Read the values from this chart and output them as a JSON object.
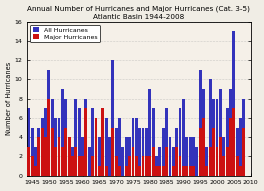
{
  "title": "Annual Number of Hurricanes and Major Hurricanes (Cat. 3-5)",
  "subtitle": "Atlantic Basin 1944-2008",
  "ylabel": "Number of Hurricanes",
  "years": [
    1944,
    1945,
    1946,
    1947,
    1948,
    1949,
    1950,
    1951,
    1952,
    1953,
    1954,
    1955,
    1956,
    1957,
    1958,
    1959,
    1960,
    1961,
    1962,
    1963,
    1964,
    1965,
    1966,
    1967,
    1968,
    1969,
    1970,
    1971,
    1972,
    1973,
    1974,
    1975,
    1976,
    1977,
    1978,
    1979,
    1980,
    1981,
    1982,
    1983,
    1984,
    1985,
    1986,
    1987,
    1988,
    1989,
    1990,
    1991,
    1992,
    1993,
    1994,
    1995,
    1996,
    1997,
    1998,
    1999,
    2000,
    2001,
    2002,
    2003,
    2004,
    2005,
    2006,
    2007,
    2008
  ],
  "all_hurricanes": [
    7,
    5,
    3,
    5,
    6,
    7,
    11,
    8,
    6,
    6,
    9,
    8,
    4,
    3,
    8,
    7,
    4,
    8,
    3,
    7,
    6,
    4,
    7,
    6,
    4,
    12,
    5,
    6,
    3,
    4,
    4,
    6,
    6,
    5,
    5,
    5,
    9,
    7,
    2,
    3,
    5,
    7,
    4,
    3,
    5,
    7,
    8,
    4,
    4,
    4,
    3,
    11,
    9,
    3,
    10,
    8,
    8,
    9,
    4,
    7,
    9,
    15,
    5,
    6,
    8
  ],
  "major_hurricanes": [
    3,
    2,
    1,
    4,
    5,
    4,
    8,
    5,
    3,
    4,
    3,
    5,
    4,
    2,
    3,
    2,
    2,
    7,
    0,
    2,
    6,
    1,
    7,
    1,
    0,
    5,
    2,
    1,
    0,
    1,
    2,
    3,
    2,
    1,
    2,
    2,
    2,
    3,
    1,
    1,
    1,
    3,
    0,
    1,
    3,
    2,
    1,
    1,
    1,
    1,
    0,
    5,
    6,
    1,
    3,
    5,
    3,
    4,
    2,
    3,
    6,
    7,
    2,
    1,
    5
  ],
  "bar_color_all": "#3333bb",
  "bar_color_major": "#cc1111",
  "plot_bg_color": "#f5f0e8",
  "fig_bg_color": "#f0ede5",
  "ylim": [
    0,
    16
  ],
  "yticks": [
    0,
    2,
    4,
    6,
    8,
    10,
    12,
    14,
    16
  ],
  "title_fontsize": 5.2,
  "label_fontsize": 4.8,
  "tick_fontsize": 4.5,
  "legend_fontsize": 4.5,
  "xtick_vals": [
    1945,
    1950,
    1955,
    1960,
    1965,
    1970,
    1975,
    1980,
    1985,
    1990,
    1995,
    2000,
    2005,
    2010
  ]
}
